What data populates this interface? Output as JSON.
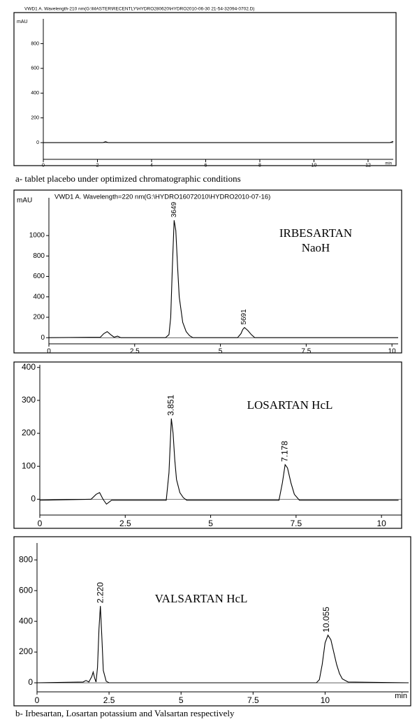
{
  "chart_data": [
    {
      "type": "line",
      "title": "VWD1 A. Wavelength-210 nm(G:\\MASTER\\RECENTLY\\HYDRO280620\\HYDRO2010-06-30 21-54-32094-0702.D)",
      "y_label": "mAU",
      "x_label": "min",
      "x": [
        0,
        2.2,
        2.3,
        2.4,
        12.8,
        12.93
      ],
      "series": [
        {
          "color": "#000000",
          "values": [
            0,
            0,
            8,
            0,
            0,
            10
          ]
        }
      ],
      "xlim": [
        0,
        12.93
      ],
      "ylim": [
        -135,
        1000
      ],
      "xticks": [
        0,
        2,
        4,
        6,
        8,
        10,
        12
      ],
      "yticks": [
        0,
        200,
        400,
        600,
        800
      ]
    },
    {
      "type": "line",
      "title": "VWD1 A. Wavelength=220 nm(G:\\HYDRO16072010\\HYDRO2010-07-16)",
      "y_label": "mAU",
      "labels": [
        "IRBESARTAN",
        "NaoH"
      ],
      "x": [
        0,
        1.5,
        1.6,
        1.7,
        1.8,
        1.9,
        2.0,
        2.1,
        3.4,
        3.5,
        3.55,
        3.6,
        3.65,
        3.7,
        3.75,
        3.8,
        3.9,
        4.0,
        4.1,
        4.2,
        5.5,
        5.6,
        5.65,
        5.7,
        5.8,
        5.9,
        6.0,
        10.18
      ],
      "series": [
        {
          "color": "#000000",
          "values": [
            0,
            5,
            40,
            60,
            30,
            5,
            15,
            0,
            0,
            30,
            200,
            700,
            1150,
            1050,
            700,
            400,
            150,
            60,
            20,
            0,
            0,
            40,
            80,
            100,
            70,
            30,
            0,
            0
          ]
        }
      ],
      "annotations": [
        {
          "text": "3649",
          "x": 3.649,
          "y": 1150
        },
        {
          "text": "5691",
          "x": 5.691,
          "y": 100
        }
      ],
      "xlim": [
        0,
        10.18
      ],
      "ylim": [
        -60,
        1370
      ],
      "xticks": [
        0,
        2.5,
        5,
        7.5,
        10
      ],
      "yticks": [
        0,
        200,
        400,
        600,
        800,
        1000
      ]
    },
    {
      "type": "line",
      "labels": [
        "LOSARTAN HcL"
      ],
      "x": [
        0,
        1.5,
        1.65,
        1.75,
        1.85,
        1.95,
        2.1,
        3.7,
        3.78,
        3.85,
        3.9,
        3.95,
        4.0,
        4.1,
        4.2,
        4.3,
        7.0,
        7.1,
        7.18,
        7.25,
        7.35,
        7.45,
        7.6,
        10.5
      ],
      "series": [
        {
          "color": "#000000",
          "values": [
            -3,
            0,
            15,
            20,
            0,
            -15,
            -3,
            -3,
            80,
            245,
            200,
            120,
            60,
            20,
            5,
            -3,
            -3,
            50,
            105,
            95,
            50,
            15,
            -3,
            -3
          ]
        }
      ],
      "annotations": [
        {
          "text": "3.851",
          "x": 3.851,
          "y": 245
        },
        {
          "text": "7.178",
          "x": 7.178,
          "y": 105
        }
      ],
      "xlim": [
        0,
        10.59
      ],
      "ylim": [
        -48,
        408
      ],
      "xticks": [
        0,
        2.5,
        5,
        7.5,
        10
      ],
      "yticks": [
        0,
        100,
        200,
        300,
        400
      ]
    },
    {
      "type": "line",
      "labels": [
        "VALSARTAN HcL"
      ],
      "x_label": "min",
      "x": [
        0,
        1.6,
        1.7,
        1.8,
        1.9,
        1.95,
        2.0,
        2.05,
        2.1,
        2.15,
        2.2,
        2.25,
        2.3,
        2.4,
        2.5,
        9.7,
        9.8,
        9.9,
        10.0,
        10.1,
        10.2,
        10.3,
        10.4,
        10.5,
        10.6,
        10.8,
        12.9
      ],
      "series": [
        {
          "color": "#000000",
          "values": [
            0,
            5,
            15,
            5,
            40,
            70,
            30,
            5,
            100,
            350,
            500,
            300,
            80,
            10,
            0,
            0,
            20,
            120,
            260,
            310,
            280,
            200,
            120,
            60,
            25,
            5,
            0
          ]
        }
      ],
      "annotations": [
        {
          "text": "2.220",
          "x": 2.22,
          "y": 500
        },
        {
          "text": "10.055",
          "x": 10.055,
          "y": 310
        }
      ],
      "xlim": [
        0,
        12.9
      ],
      "ylim": [
        -59,
        910
      ],
      "xticks": [
        0,
        2.5,
        5,
        7.5,
        10
      ],
      "yticks": [
        0,
        200,
        400,
        600,
        800
      ]
    }
  ],
  "captions": [
    "a- tablet placebo under optimized chromatographic conditions",
    "b- Irbesartan, Losartan potassium and Valsartan respectively"
  ]
}
